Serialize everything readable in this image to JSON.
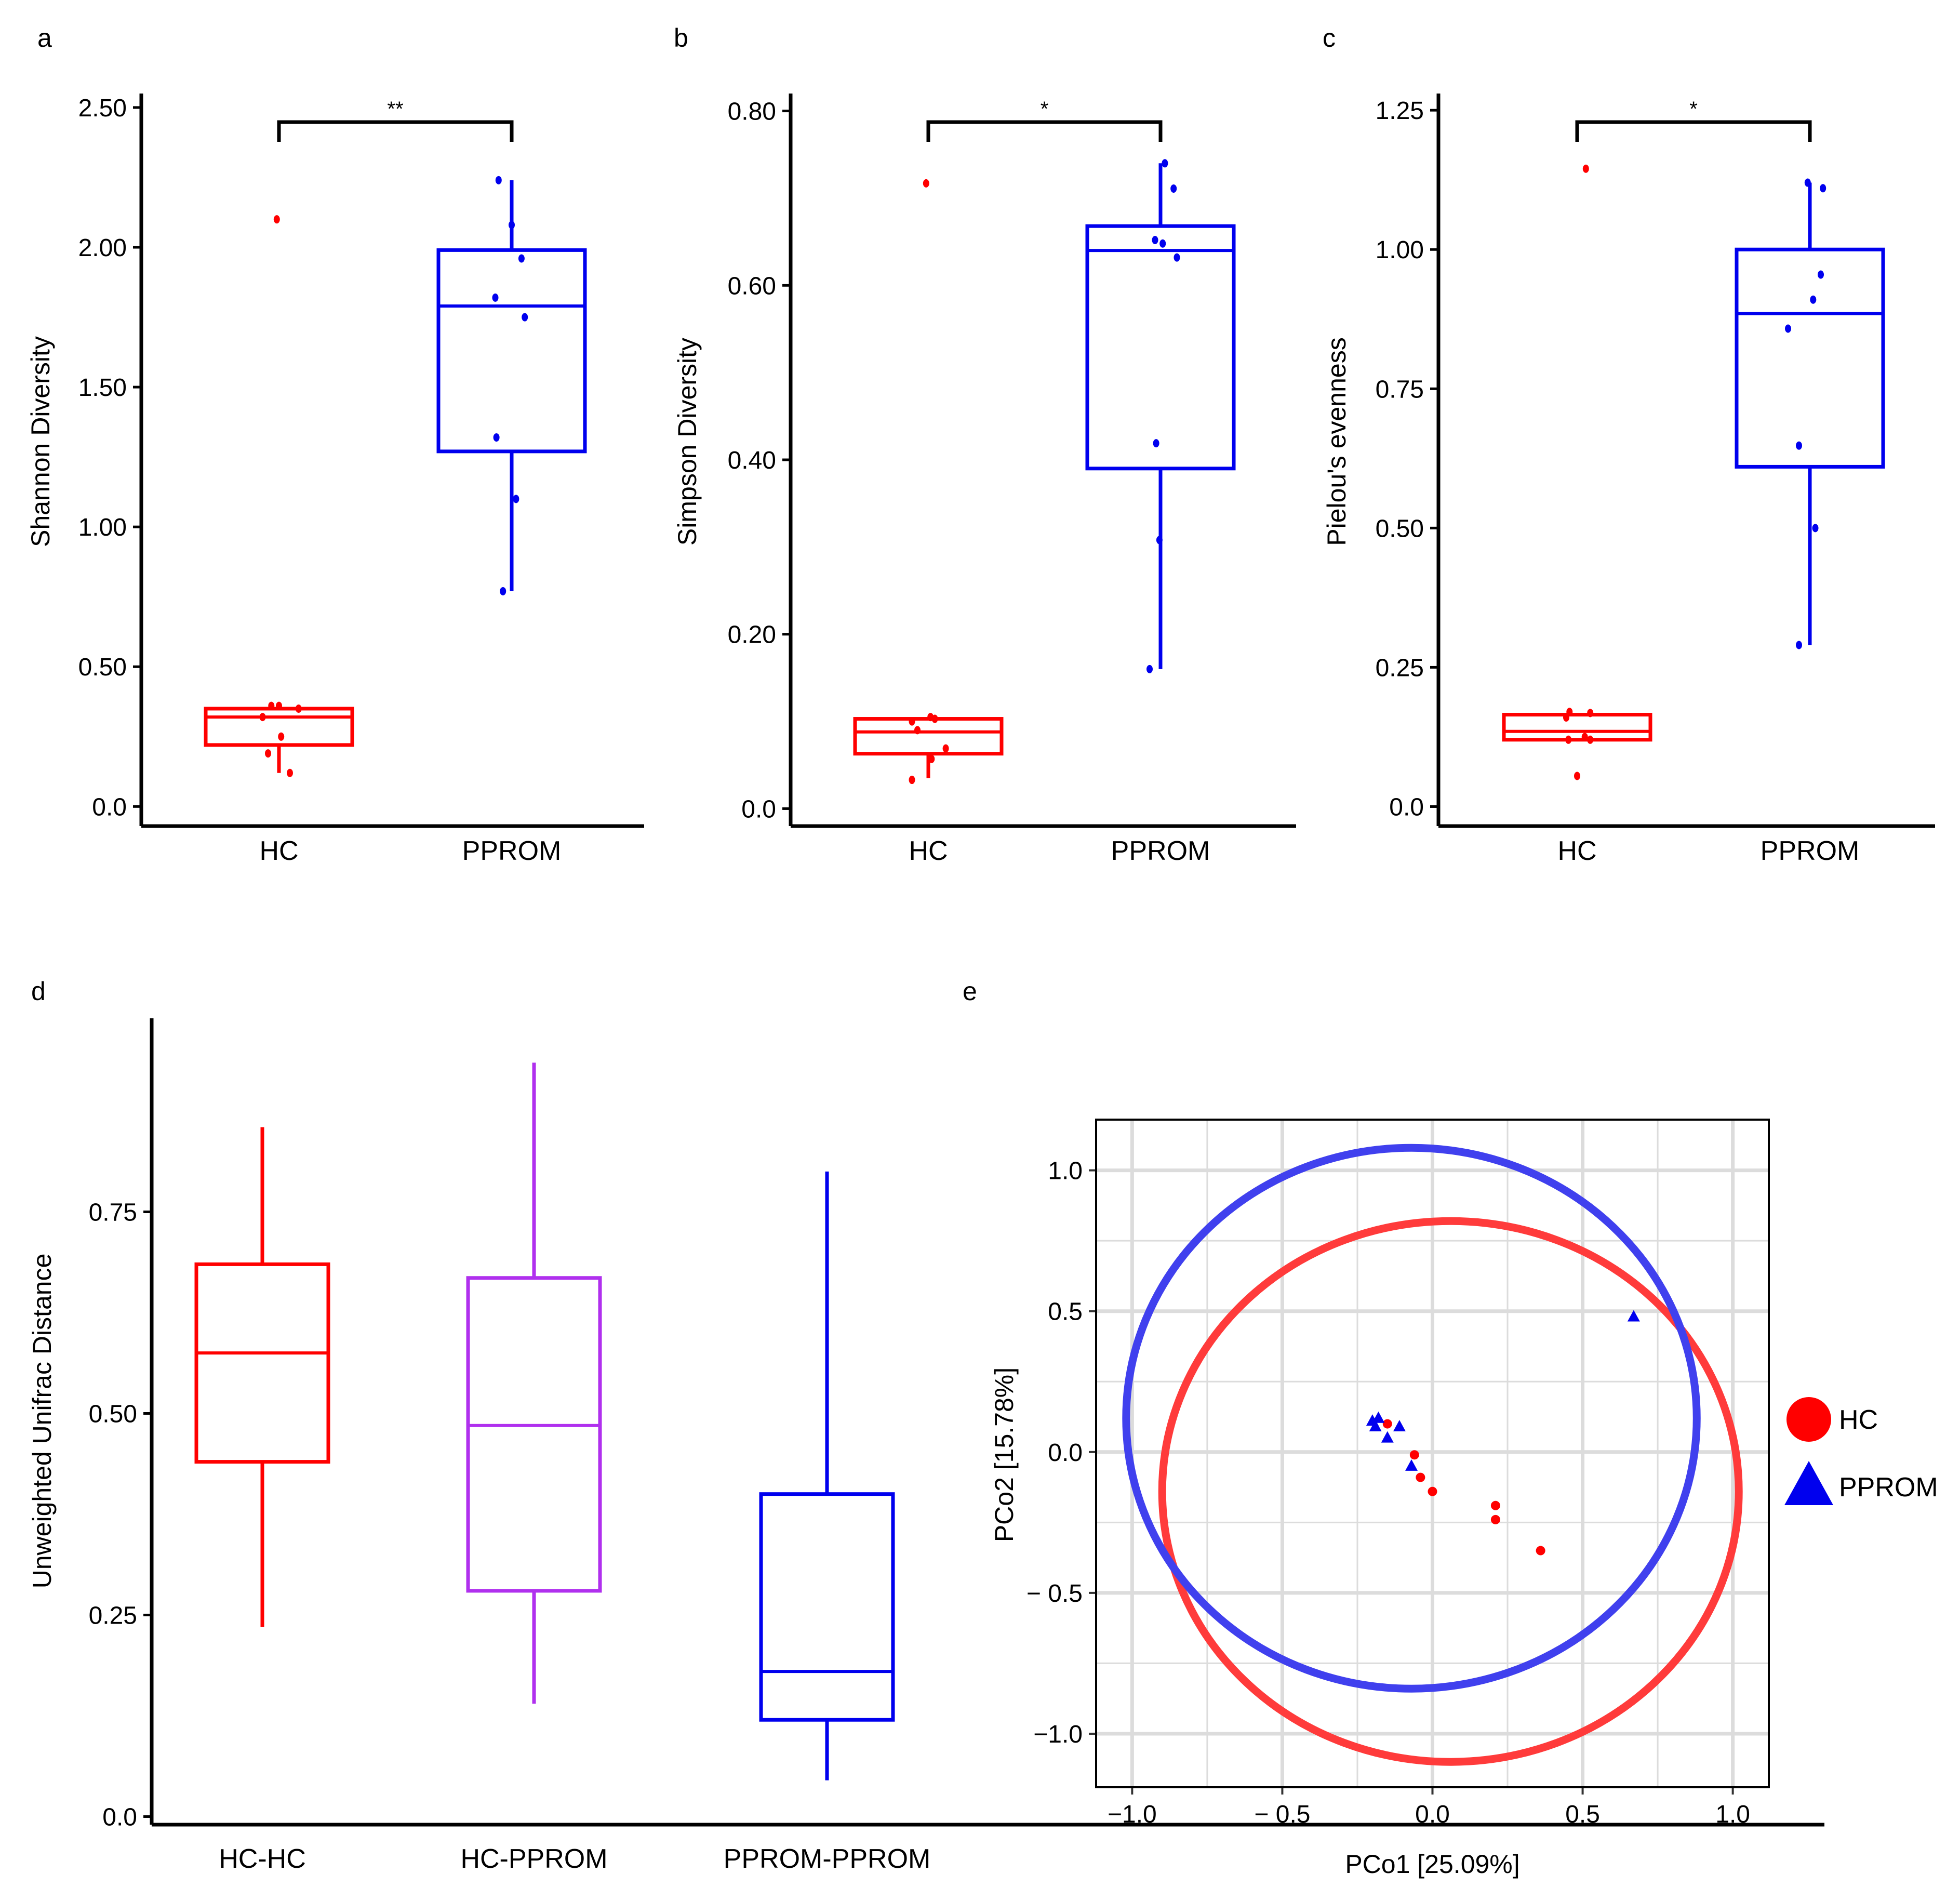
{
  "colors": {
    "hc": "#ff0000",
    "pprom": "#0000ee",
    "mixed": "#b030ee",
    "hc_ellipse": "#ff3b3b",
    "pprom_ellipse": "#4040ee",
    "grid": "#dcdcdc"
  },
  "chart_data": [
    {
      "panel": "a",
      "type": "box",
      "ylabel": "Shannon Diversity",
      "ylim": [
        -0.07,
        2.55
      ],
      "yticks": [
        0.0,
        0.5,
        1.0,
        1.5,
        2.0,
        2.5
      ],
      "ytick_labels": [
        "0.0",
        "0.50",
        "1.00",
        "1.50",
        "2.00",
        "2.50"
      ],
      "categories": [
        "HC",
        "PPROM"
      ],
      "significance": "**",
      "groups": [
        {
          "name": "HC",
          "color": "#ff0000",
          "min": 0.12,
          "q1": 0.22,
          "median": 0.32,
          "q3": 0.35,
          "max": 0.35,
          "points": [
            {
              "x": -0.15,
              "y": 0.32
            },
            {
              "x": -0.07,
              "y": 0.36
            },
            {
              "x": 0.0,
              "y": 0.36
            },
            {
              "x": 0.18,
              "y": 0.35
            },
            {
              "x": 0.02,
              "y": 0.25
            },
            {
              "x": -0.1,
              "y": 0.19
            },
            {
              "x": 0.1,
              "y": 0.12
            },
            {
              "x": -0.02,
              "y": 2.1
            }
          ]
        },
        {
          "name": "PPROM",
          "color": "#0000ee",
          "min": 0.77,
          "q1": 1.27,
          "median": 1.79,
          "q3": 1.99,
          "max": 2.24,
          "points": [
            {
              "x": -0.12,
              "y": 2.24
            },
            {
              "x": 0.0,
              "y": 2.08
            },
            {
              "x": 0.09,
              "y": 1.96
            },
            {
              "x": -0.15,
              "y": 1.82
            },
            {
              "x": 0.12,
              "y": 1.75
            },
            {
              "x": -0.14,
              "y": 1.32
            },
            {
              "x": 0.04,
              "y": 1.1
            },
            {
              "x": -0.08,
              "y": 0.77
            }
          ]
        }
      ]
    },
    {
      "panel": "b",
      "type": "box",
      "ylabel": "Simpson Diversity",
      "ylim": [
        -0.02,
        0.82
      ],
      "yticks": [
        0.0,
        0.2,
        0.4,
        0.6,
        0.8
      ],
      "ytick_labels": [
        "0.0",
        "0.20",
        "0.40",
        "0.60",
        "0.80"
      ],
      "categories": [
        "HC",
        "PPROM"
      ],
      "significance": "*",
      "groups": [
        {
          "name": "HC",
          "color": "#ff0000",
          "min": 0.035,
          "q1": 0.063,
          "median": 0.088,
          "q3": 0.103,
          "max": 0.103,
          "points": [
            {
              "x": -0.15,
              "y": 0.1
            },
            {
              "x": -0.1,
              "y": 0.09
            },
            {
              "x": 0.02,
              "y": 0.105
            },
            {
              "x": 0.06,
              "y": 0.103
            },
            {
              "x": 0.16,
              "y": 0.069
            },
            {
              "x": 0.03,
              "y": 0.057
            },
            {
              "x": -0.15,
              "y": 0.033
            },
            {
              "x": -0.02,
              "y": 0.717
            }
          ]
        },
        {
          "name": "PPROM",
          "color": "#0000ee",
          "min": 0.16,
          "q1": 0.39,
          "median": 0.64,
          "q3": 0.668,
          "max": 0.74,
          "points": [
            {
              "x": 0.04,
              "y": 0.74
            },
            {
              "x": 0.12,
              "y": 0.711
            },
            {
              "x": -0.05,
              "y": 0.652
            },
            {
              "x": 0.02,
              "y": 0.648
            },
            {
              "x": 0.15,
              "y": 0.632
            },
            {
              "x": -0.04,
              "y": 0.419
            },
            {
              "x": -0.01,
              "y": 0.308
            },
            {
              "x": -0.1,
              "y": 0.16
            }
          ]
        }
      ]
    },
    {
      "panel": "c",
      "type": "box",
      "ylabel": "Pielou's evenness",
      "ylim": [
        -0.035,
        1.28
      ],
      "yticks": [
        0.0,
        0.25,
        0.5,
        0.75,
        1.0,
        1.25
      ],
      "ytick_labels": [
        "0.0",
        "0.25",
        "0.50",
        "0.75",
        "1.00",
        "1.25"
      ],
      "categories": [
        "HC",
        "PPROM"
      ],
      "significance": "*",
      "groups": [
        {
          "name": "HC",
          "color": "#ff0000",
          "min": 0.12,
          "q1": 0.12,
          "median": 0.135,
          "q3": 0.165,
          "max": 0.165,
          "points": [
            {
              "x": -0.1,
              "y": 0.16
            },
            {
              "x": -0.07,
              "y": 0.17
            },
            {
              "x": 0.12,
              "y": 0.168
            },
            {
              "x": 0.07,
              "y": 0.125
            },
            {
              "x": 0.12,
              "y": 0.12
            },
            {
              "x": -0.08,
              "y": 0.12
            },
            {
              "x": 0.0,
              "y": 0.055
            },
            {
              "x": 0.08,
              "y": 1.145
            }
          ]
        },
        {
          "name": "PPROM",
          "color": "#0000ee",
          "min": 0.29,
          "q1": 0.61,
          "median": 0.885,
          "q3": 1.0,
          "max": 1.12,
          "points": [
            {
              "x": -0.02,
              "y": 1.12
            },
            {
              "x": 0.12,
              "y": 1.11
            },
            {
              "x": 0.1,
              "y": 0.955
            },
            {
              "x": 0.03,
              "y": 0.91
            },
            {
              "x": -0.2,
              "y": 0.858
            },
            {
              "x": -0.1,
              "y": 0.648
            },
            {
              "x": 0.05,
              "y": 0.5
            },
            {
              "x": -0.1,
              "y": 0.29
            }
          ]
        }
      ]
    },
    {
      "panel": "d",
      "type": "box",
      "ylabel": "Unweighted Unifrac Distance",
      "ylim": [
        -0.01,
        0.99
      ],
      "yticks": [
        0.0,
        0.25,
        0.5,
        0.75
      ],
      "ytick_labels": [
        "0.0",
        "0.25",
        "0.50",
        "0.75"
      ],
      "categories": [
        "HC-HC",
        "HC-PPROM",
        "PPROM-PPROM"
      ],
      "groups": [
        {
          "name": "HC-HC",
          "color": "#ff0000",
          "min": 0.235,
          "q1": 0.44,
          "median": 0.575,
          "q3": 0.685,
          "max": 0.855
        },
        {
          "name": "HC-PPROM",
          "color": "#b030ee",
          "min": 0.14,
          "q1": 0.28,
          "median": 0.485,
          "q3": 0.668,
          "max": 0.935
        },
        {
          "name": "PPROM-PPROM",
          "color": "#0000ee",
          "min": 0.045,
          "q1": 0.12,
          "median": 0.18,
          "q3": 0.4,
          "max": 0.8
        }
      ]
    },
    {
      "panel": "e",
      "type": "scatter",
      "xlabel": "PCo1 [25.09%]",
      "ylabel": "PCo2 [15.78%]",
      "xlim": [
        -1.12,
        1.12
      ],
      "ylim": [
        -1.19,
        1.18
      ],
      "xticks": [
        -1.0,
        -0.5,
        0.0,
        0.5,
        1.0
      ],
      "xtick_labels": [
        "−1.0",
        "− 0.5",
        "0.0",
        "0.5",
        "1.0"
      ],
      "yticks": [
        -1.0,
        -0.5,
        0.0,
        0.5,
        1.0
      ],
      "ytick_labels": [
        "−1.0",
        "− 0.5",
        "0.0",
        "0.5",
        "1.0"
      ],
      "legend_position": "right",
      "series": [
        {
          "name": "HC",
          "marker": "circle",
          "color": "#ff0000",
          "points": [
            [
              -0.15,
              0.1
            ],
            [
              -0.06,
              -0.01
            ],
            [
              -0.04,
              -0.09
            ],
            [
              0.0,
              -0.14
            ],
            [
              0.21,
              -0.19
            ],
            [
              0.21,
              -0.24
            ],
            [
              0.36,
              -0.35
            ]
          ],
          "ellipse": {
            "cx": 0.06,
            "cy": -0.14,
            "rx": 0.96,
            "ry": 0.96
          }
        },
        {
          "name": "PPROM",
          "marker": "triangle",
          "color": "#0000ee",
          "points": [
            [
              -0.2,
              0.11
            ],
            [
              -0.19,
              0.09
            ],
            [
              -0.18,
              0.12
            ],
            [
              -0.15,
              0.05
            ],
            [
              -0.11,
              0.09
            ],
            [
              -0.07,
              -0.05
            ],
            [
              0.67,
              0.48
            ]
          ],
          "ellipse": {
            "cx": -0.07,
            "cy": 0.12,
            "rx": 0.95,
            "ry": 0.96
          }
        }
      ]
    }
  ]
}
